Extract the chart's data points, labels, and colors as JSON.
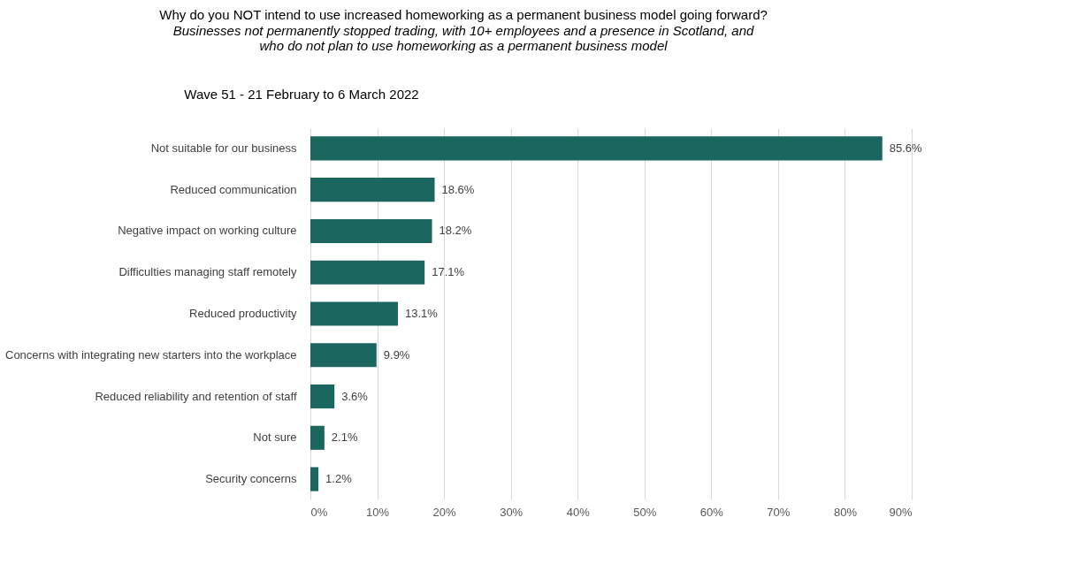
{
  "chart_data": {
    "type": "bar",
    "orientation": "horizontal",
    "title": "Why do you NOT intend to use increased homeworking as a permanent business model going forward?",
    "subtitle": "Businesses not permanently stopped trading, with 10+ employees and a presence in Scotland, and who do not plan to use homeworking as a permanent business model",
    "annotations": [
      "Wave 51 - 21 February  to 6 March 2022"
    ],
    "categories": [
      "Not suitable for our business",
      "Reduced communication",
      "Negative impact on working culture",
      "Difficulties managing staff remotely",
      "Reduced productivity",
      "Concerns with integrating new starters into the workplace",
      "Reduced reliability and retention of staff",
      "Not sure",
      "Security concerns"
    ],
    "values": [
      85.6,
      18.6,
      18.2,
      17.1,
      13.1,
      9.9,
      3.6,
      2.1,
      1.2
    ],
    "value_labels": [
      "85.6%",
      "18.6%",
      "18.2%",
      "17.1%",
      "13.1%",
      "9.9%",
      "3.6%",
      "2.1%",
      "1.2%"
    ],
    "color": "#1c6660",
    "xlim": [
      0,
      90
    ],
    "xticks": [
      {
        "value": 0,
        "label": "0%"
      },
      {
        "value": 10,
        "label": "10%"
      },
      {
        "value": 20,
        "label": "20%"
      },
      {
        "value": 30,
        "label": "30%"
      },
      {
        "value": 40,
        "label": "40%"
      },
      {
        "value": 50,
        "label": "50%"
      },
      {
        "value": 60,
        "label": "60%"
      },
      {
        "value": 70,
        "label": "70%"
      },
      {
        "value": 80,
        "label": "80%"
      },
      {
        "value": 90,
        "label": "90%"
      }
    ],
    "grid": "x"
  }
}
